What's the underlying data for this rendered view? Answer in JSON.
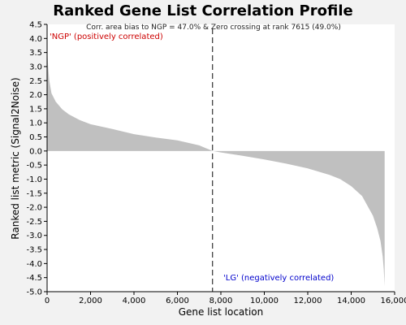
{
  "chart_data": {
    "type": "area",
    "title": "Ranked Gene List Correlation Profile",
    "subtitle": "Corr. area bias to NGP = 47.0% & Zero crossing at rank 7615 (49.0%)",
    "xlabel": "Gene list location",
    "ylabel": "Ranked list metric (Signal2Noise)",
    "xlim": [
      0,
      16000
    ],
    "ylim": [
      -5.0,
      4.5
    ],
    "xticks": [
      0,
      2000,
      4000,
      6000,
      8000,
      10000,
      12000,
      14000,
      16000
    ],
    "xtick_labels": [
      "0",
      "2,000",
      "4,000",
      "6,000",
      "8,000",
      "10,000",
      "12,000",
      "14,000",
      "16,000"
    ],
    "yticks": [
      4.5,
      4.0,
      3.5,
      3.0,
      2.5,
      2.0,
      1.5,
      1.0,
      0.5,
      0.0,
      -0.5,
      -1.0,
      -1.5,
      -2.0,
      -2.5,
      -3.0,
      -3.5,
      -4.0,
      -4.5,
      -5.0
    ],
    "ytick_labels": [
      "4.5",
      "4.0",
      "3.5",
      "3.0",
      "2.5",
      "2.0",
      "1.5",
      "1.0",
      "0.5",
      "0.0",
      "-0.5",
      "-1.0",
      "-1.5",
      "-2.0",
      "-2.5",
      "-3.0",
      "-3.5",
      "-4.0",
      "-4.5",
      "-5.0"
    ],
    "zero_crossing_rank": 7615,
    "annotations": {
      "positive": "'NGP' (positively correlated)",
      "negative": "'LG' (negatively correlated)"
    },
    "colors": {
      "fill": "#c0c0c0",
      "positive_label": "#cc0000",
      "negative_label": "#0000cc",
      "zero_line": "#333333"
    },
    "series": [
      {
        "x": [
          0,
          20,
          50,
          100,
          200,
          400,
          700,
          1000,
          1500,
          2000,
          3000,
          4000,
          5000,
          6000,
          7000,
          7615,
          8000,
          9000,
          10000,
          11000,
          12000,
          13000,
          13500,
          14000,
          14500,
          15000,
          15200,
          15350,
          15450,
          15500,
          15540
        ],
        "y": [
          3.7,
          3.4,
          3.0,
          2.5,
          2.05,
          1.75,
          1.48,
          1.3,
          1.1,
          0.95,
          0.78,
          0.6,
          0.48,
          0.38,
          0.2,
          0.0,
          -0.05,
          -0.17,
          -0.3,
          -0.45,
          -0.62,
          -0.85,
          -1.0,
          -1.25,
          -1.6,
          -2.3,
          -2.75,
          -3.2,
          -3.75,
          -4.2,
          -4.8
        ]
      }
    ]
  }
}
